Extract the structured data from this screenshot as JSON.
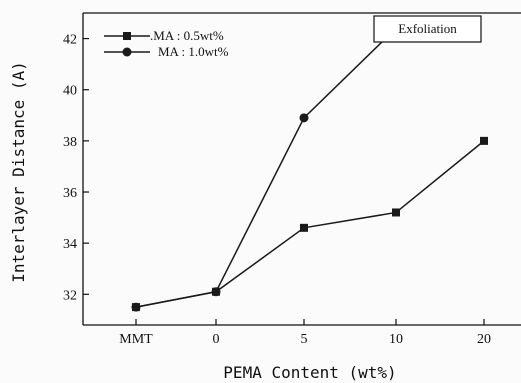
{
  "chart_data": {
    "type": "line",
    "categories": [
      "MMT",
      "0",
      "5",
      "10",
      "20"
    ],
    "series": [
      {
        "name": ".MA : 0.5wt%",
        "marker": "square",
        "values": [
          31.5,
          32.1,
          34.6,
          35.2,
          38.0
        ]
      },
      {
        "name": "MA : 1.0wt%",
        "marker": "circle",
        "values": [
          31.5,
          32.1,
          38.9,
          42.4,
          null
        ]
      }
    ],
    "xlabel": "PEMA Content (wt%)",
    "ylabel": "Interlayer Distance (A)",
    "ylim": [
      30.8,
      43
    ],
    "yticks": [
      32,
      34,
      36,
      38,
      40,
      42
    ],
    "annotation": "Exfoliation",
    "legend_position": "top-left",
    "grid": false,
    "line_color": "#1a1a1a"
  }
}
